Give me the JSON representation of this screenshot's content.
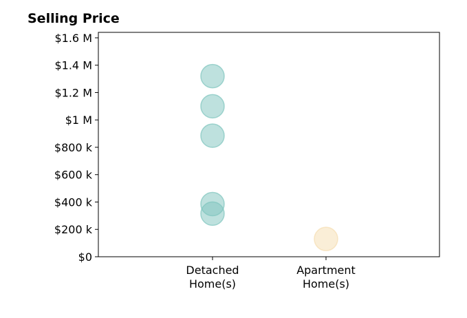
{
  "chart_data": {
    "type": "scatter",
    "title": "Selling Price",
    "categories": [
      [
        "Detached",
        "Home(s)"
      ],
      [
        "Apartment",
        "Home(s)"
      ]
    ],
    "ylim": [
      0,
      1640000
    ],
    "yticks": [
      0,
      200000,
      400000,
      600000,
      800000,
      1000000,
      1200000,
      1400000,
      1600000
    ],
    "ytick_labels": [
      "$0",
      "$200 k",
      "$400 k",
      "$600 k",
      "$800 k",
      "$1 M",
      "$1.2 M",
      "$1.4 M",
      "$1.6 M"
    ],
    "grid": false,
    "series": [
      {
        "category_index": 0,
        "color": "#7ec4bd",
        "values": [
          1320000,
          1100000,
          885000,
          385000,
          315000
        ]
      },
      {
        "category_index": 1,
        "color": "#f5ddb0",
        "values": [
          130000
        ]
      }
    ]
  }
}
